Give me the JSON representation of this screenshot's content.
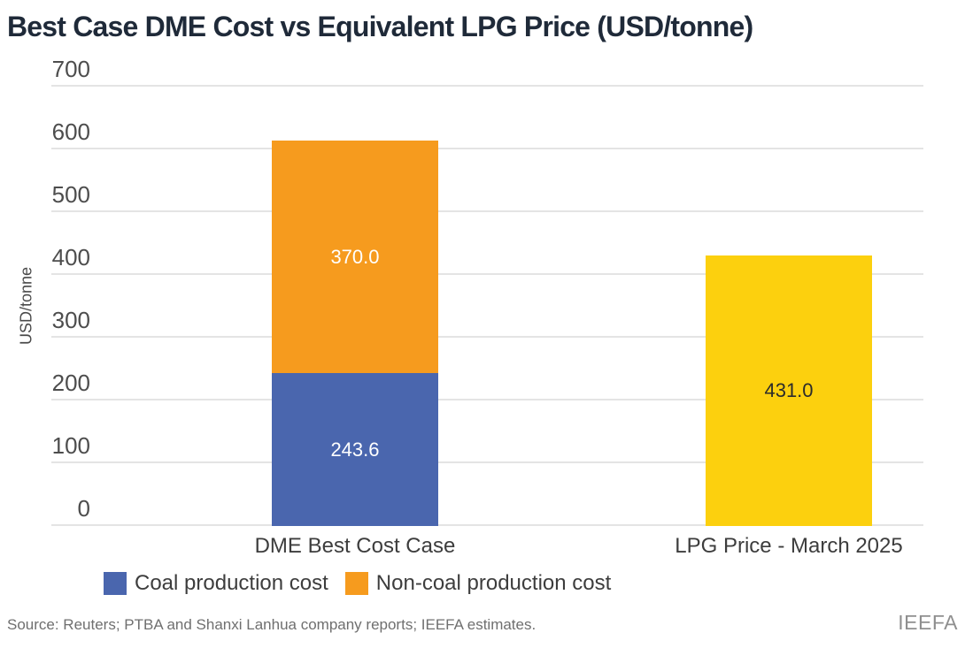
{
  "chart_data": {
    "type": "bar",
    "variant": "stacked-column",
    "title": "Best Case DME Cost vs Equivalent LPG Price (USD/tonne)",
    "ylabel": "USD/tonne",
    "xlabel": "",
    "ylim": [
      0,
      700
    ],
    "yticks": [
      0,
      100,
      200,
      300,
      400,
      500,
      600,
      700
    ],
    "grid": "horizontal",
    "categories": [
      "DME Best Cost Case",
      "LPG Price - March 2025"
    ],
    "bars": [
      {
        "category": "DME Best Cost Case",
        "center_pct": 34.82,
        "segments": [
          {
            "label": "Coal production cost",
            "value": 243.6,
            "display": "243.6",
            "color": "#4a66ae",
            "value_color": "#ffffff"
          },
          {
            "label": "Non-coal production cost",
            "value": 370.0,
            "display": "370.0",
            "color": "#f69b1e",
            "value_color": "#ffffff"
          }
        ],
        "total": 613.6
      },
      {
        "category": "LPG Price - March 2025",
        "center_pct": 84.57,
        "segments": [
          {
            "label": "LPG price",
            "value": 431.0,
            "display": "431.0",
            "color": "#fcd00e",
            "value_color": "#2b2b2b"
          }
        ],
        "total": 431.0
      }
    ],
    "bar_width_pct": 19.09,
    "legend": [
      {
        "label": "Coal production cost",
        "color": "#4a66ae"
      },
      {
        "label": "Non-coal production cost",
        "color": "#f69b1e"
      }
    ],
    "legend_position": "bottom-left",
    "colors": {
      "title": "#1f2a39",
      "gridline": "#e4e4e4",
      "tick_label": "#4d4d4d",
      "category_label": "#3d3d3d",
      "source_text": "#6f6f6f",
      "logo_text": "#8f8f8f"
    }
  },
  "footer": {
    "source": "Source: Reuters; PTBA and Shanxi Lanhua company reports; IEEFA estimates.",
    "logo": "IEEFA"
  }
}
